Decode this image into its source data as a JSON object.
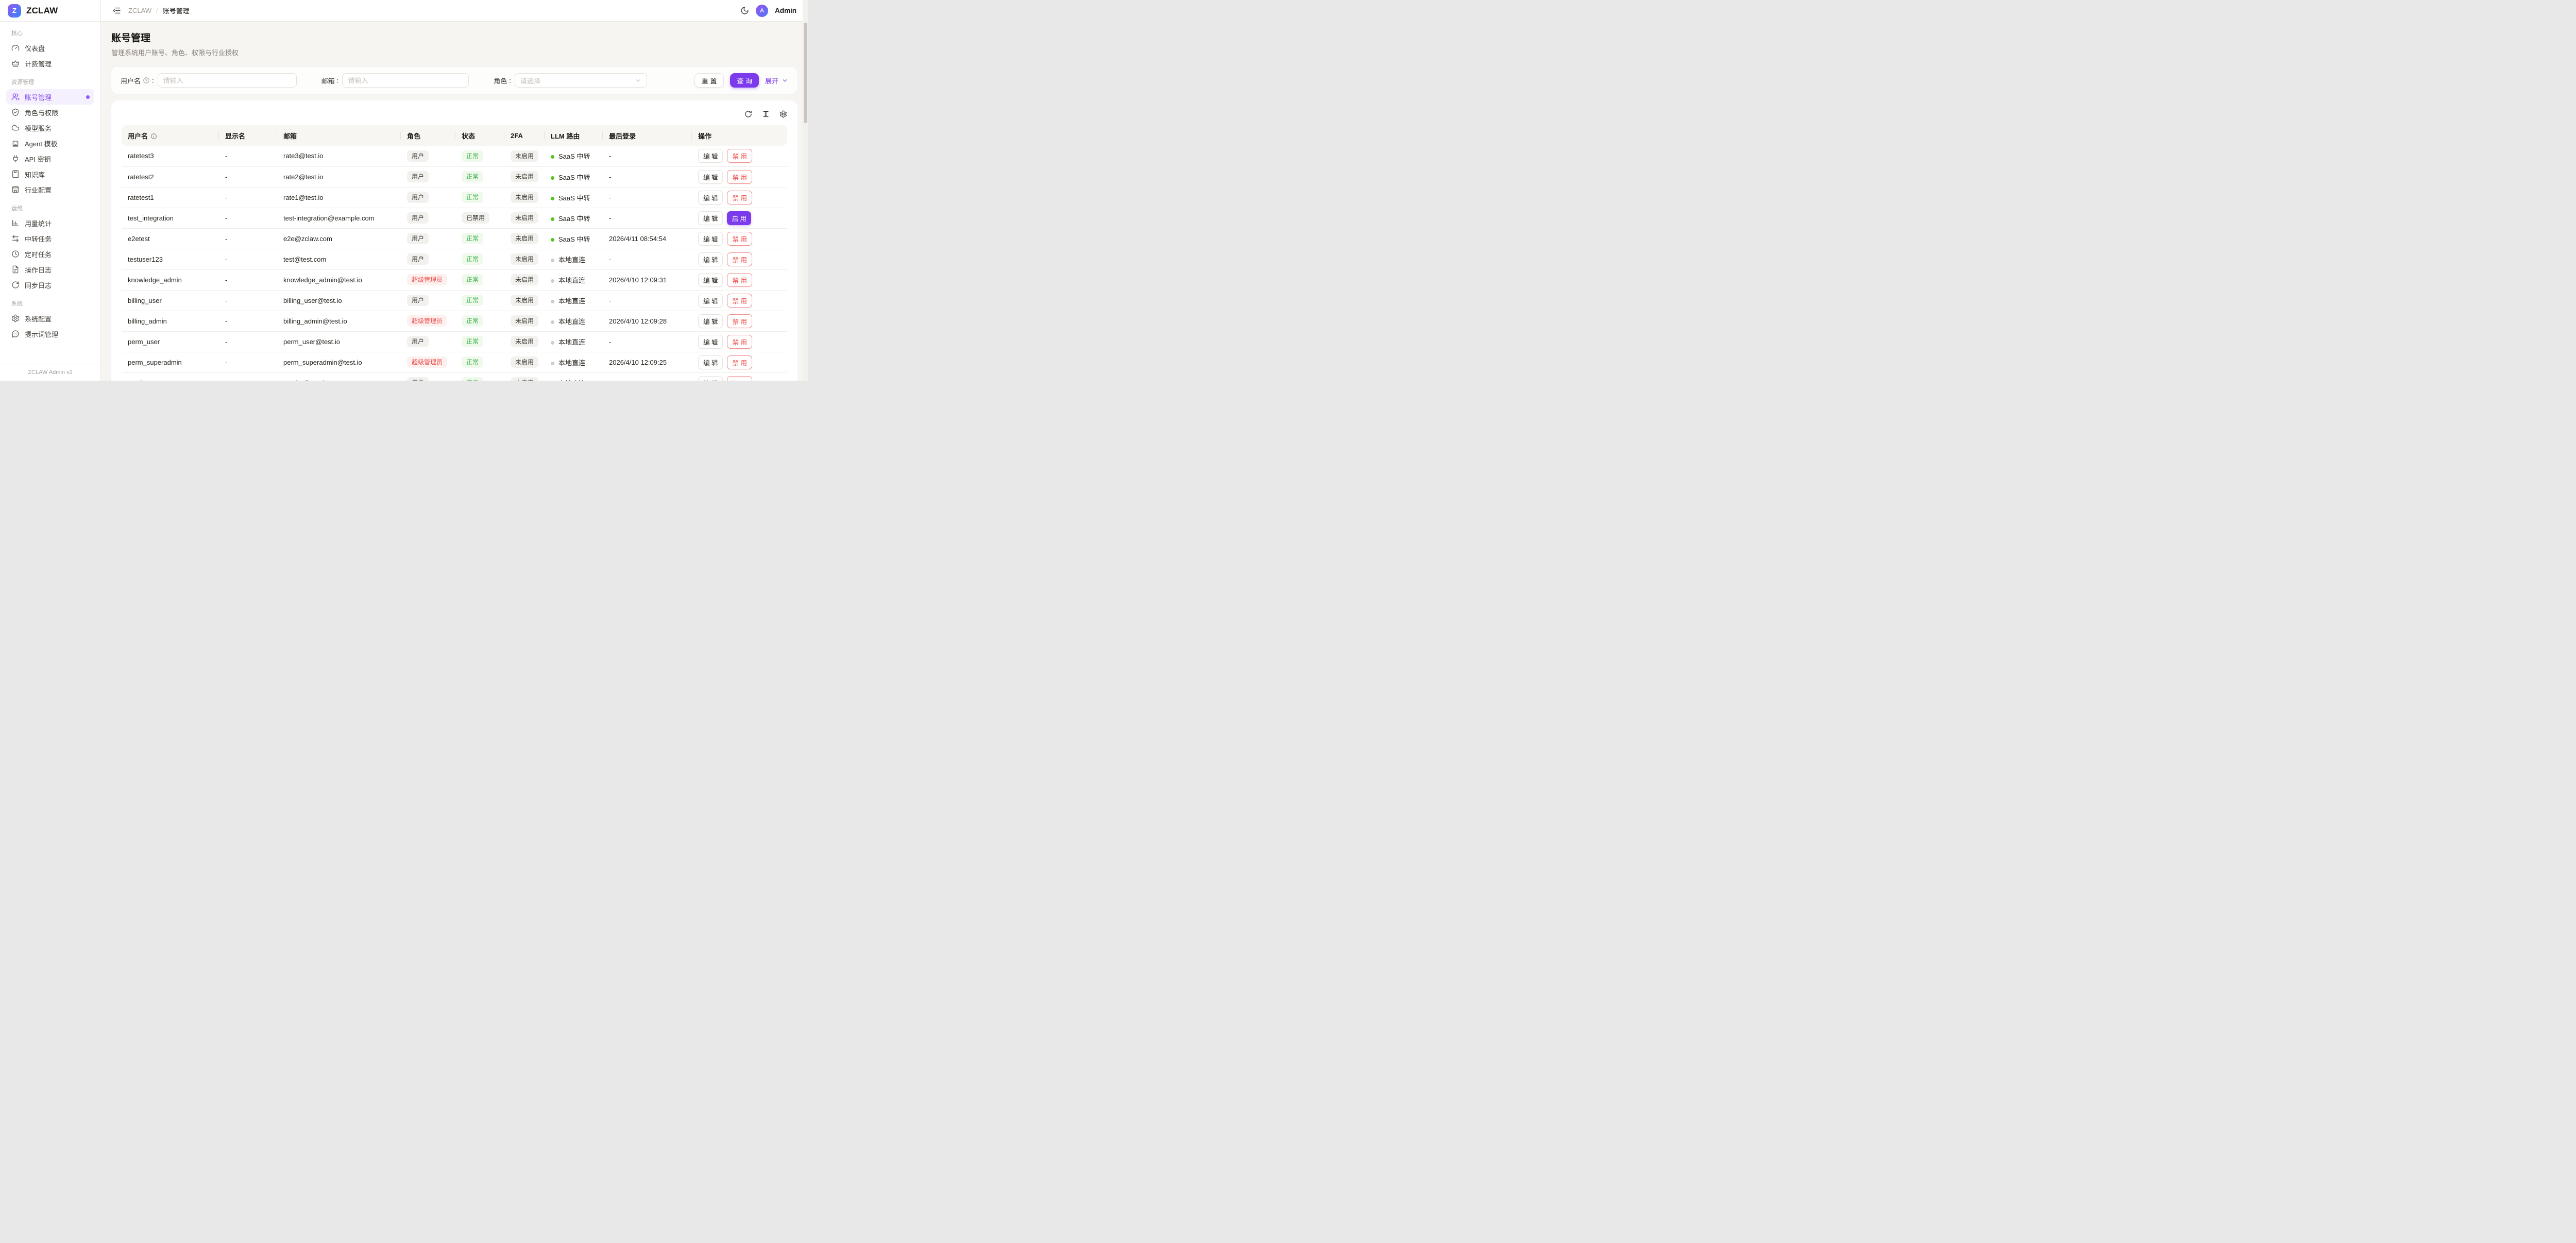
{
  "app": {
    "brand": "ZCLAW",
    "logo_letter": "Z",
    "footer": "ZCLAW Admin v2"
  },
  "header": {
    "breadcrumb_root": "ZCLAW",
    "breadcrumb_sep": "/",
    "breadcrumb_current": "账号管理",
    "user_initial": "A",
    "user_name": "Admin"
  },
  "sidebar": {
    "sections": [
      {
        "label": "核心",
        "items": [
          {
            "icon": "gauge-icon",
            "label": "仪表盘"
          },
          {
            "icon": "crown-icon",
            "label": "计费管理"
          }
        ]
      },
      {
        "label": "资源管理",
        "items": [
          {
            "icon": "users-icon",
            "label": "账号管理",
            "active": true
          },
          {
            "icon": "shield-check-icon",
            "label": "角色与权限"
          },
          {
            "icon": "cloud-icon",
            "label": "模型服务"
          },
          {
            "icon": "bot-icon",
            "label": "Agent 模板"
          },
          {
            "icon": "plug-icon",
            "label": "API 密钥"
          },
          {
            "icon": "book-icon",
            "label": "知识库"
          },
          {
            "icon": "store-icon",
            "label": "行业配置"
          }
        ]
      },
      {
        "label": "运维",
        "items": [
          {
            "icon": "bar-chart-icon",
            "label": "用量统计"
          },
          {
            "icon": "swap-icon",
            "label": "中转任务"
          },
          {
            "icon": "clock-icon",
            "label": "定时任务"
          },
          {
            "icon": "file-icon",
            "label": "操作日志"
          },
          {
            "icon": "sync-icon",
            "label": "同步日志"
          }
        ]
      },
      {
        "label": "系统",
        "items": [
          {
            "icon": "gear-icon",
            "label": "系统配置"
          },
          {
            "icon": "chat-icon",
            "label": "提示词管理"
          }
        ]
      }
    ]
  },
  "page": {
    "title": "账号管理",
    "subtitle": "管理系统用户账号、角色、权限与行业授权"
  },
  "filters": {
    "username_label": "用户名",
    "username_placeholder": "请输入",
    "email_label": "邮箱",
    "email_placeholder": "请输入",
    "role_label": "角色",
    "role_placeholder": "请选择",
    "label_colon": ":",
    "reset_label": "重 置",
    "search_label": "查 询",
    "expand_label": "展开"
  },
  "toolbar": {
    "icons": [
      "refresh-icon",
      "row-height-icon",
      "gear-icon"
    ]
  },
  "table": {
    "columns": [
      {
        "label": "用户名",
        "info": true
      },
      {
        "label": "显示名"
      },
      {
        "label": "邮箱"
      },
      {
        "label": "角色"
      },
      {
        "label": "状态"
      },
      {
        "label": "2FA"
      },
      {
        "label": "LLM 路由"
      },
      {
        "label": "最后登录"
      },
      {
        "label": "操作"
      }
    ],
    "rows": [
      {
        "username": "ratetest3",
        "display": "-",
        "email": "rate3@test.io",
        "role": {
          "label": "用户",
          "type": "user"
        },
        "status": {
          "label": "正常",
          "type": "normal"
        },
        "twofa": "未启用",
        "route": {
          "label": "SaaS 中转",
          "type": "saas"
        },
        "last_login": "-",
        "actions": [
          {
            "label": "编 辑",
            "variant": "default"
          },
          {
            "label": "禁 用",
            "variant": "danger"
          }
        ]
      },
      {
        "username": "ratetest2",
        "display": "-",
        "email": "rate2@test.io",
        "role": {
          "label": "用户",
          "type": "user"
        },
        "status": {
          "label": "正常",
          "type": "normal"
        },
        "twofa": "未启用",
        "route": {
          "label": "SaaS 中转",
          "type": "saas"
        },
        "last_login": "-",
        "actions": [
          {
            "label": "编 辑",
            "variant": "default"
          },
          {
            "label": "禁 用",
            "variant": "danger"
          }
        ]
      },
      {
        "username": "ratetest1",
        "display": "-",
        "email": "rate1@test.io",
        "role": {
          "label": "用户",
          "type": "user"
        },
        "status": {
          "label": "正常",
          "type": "normal"
        },
        "twofa": "未启用",
        "route": {
          "label": "SaaS 中转",
          "type": "saas"
        },
        "last_login": "-",
        "actions": [
          {
            "label": "编 辑",
            "variant": "default"
          },
          {
            "label": "禁 用",
            "variant": "danger"
          }
        ]
      },
      {
        "username": "test_integration",
        "display": "-",
        "email": "test-integration@example.com",
        "role": {
          "label": "用户",
          "type": "user"
        },
        "status": {
          "label": "已禁用",
          "type": "disabled"
        },
        "twofa": "未启用",
        "route": {
          "label": "SaaS 中转",
          "type": "saas"
        },
        "last_login": "-",
        "actions": [
          {
            "label": "编 辑",
            "variant": "default"
          },
          {
            "label": "启 用",
            "variant": "primary"
          }
        ]
      },
      {
        "username": "e2etest",
        "display": "-",
        "email": "e2e@zclaw.com",
        "role": {
          "label": "用户",
          "type": "user"
        },
        "status": {
          "label": "正常",
          "type": "normal"
        },
        "twofa": "未启用",
        "route": {
          "label": "SaaS 中转",
          "type": "saas"
        },
        "last_login": "2026/4/11 08:54:54",
        "actions": [
          {
            "label": "编 辑",
            "variant": "default"
          },
          {
            "label": "禁 用",
            "variant": "danger"
          }
        ]
      },
      {
        "username": "testuser123",
        "display": "-",
        "email": "test@test.com",
        "role": {
          "label": "用户",
          "type": "user"
        },
        "status": {
          "label": "正常",
          "type": "normal"
        },
        "twofa": "未启用",
        "route": {
          "label": "本地直连",
          "type": "local"
        },
        "last_login": "-",
        "actions": [
          {
            "label": "编 辑",
            "variant": "default"
          },
          {
            "label": "禁 用",
            "variant": "danger"
          }
        ]
      },
      {
        "username": "knowledge_admin",
        "display": "-",
        "email": "knowledge_admin@test.io",
        "role": {
          "label": "超级管理员",
          "type": "superadmin"
        },
        "status": {
          "label": "正常",
          "type": "normal"
        },
        "twofa": "未启用",
        "route": {
          "label": "本地直连",
          "type": "local"
        },
        "last_login": "2026/4/10 12:09:31",
        "actions": [
          {
            "label": "编 辑",
            "variant": "default"
          },
          {
            "label": "禁 用",
            "variant": "danger"
          }
        ]
      },
      {
        "username": "billing_user",
        "display": "-",
        "email": "billing_user@test.io",
        "role": {
          "label": "用户",
          "type": "user"
        },
        "status": {
          "label": "正常",
          "type": "normal"
        },
        "twofa": "未启用",
        "route": {
          "label": "本地直连",
          "type": "local"
        },
        "last_login": "-",
        "actions": [
          {
            "label": "编 辑",
            "variant": "default"
          },
          {
            "label": "禁 用",
            "variant": "danger"
          }
        ]
      },
      {
        "username": "billing_admin",
        "display": "-",
        "email": "billing_admin@test.io",
        "role": {
          "label": "超级管理员",
          "type": "superadmin"
        },
        "status": {
          "label": "正常",
          "type": "normal"
        },
        "twofa": "未启用",
        "route": {
          "label": "本地直连",
          "type": "local"
        },
        "last_login": "2026/4/10 12:09:28",
        "actions": [
          {
            "label": "编 辑",
            "variant": "default"
          },
          {
            "label": "禁 用",
            "variant": "danger"
          }
        ]
      },
      {
        "username": "perm_user",
        "display": "-",
        "email": "perm_user@test.io",
        "role": {
          "label": "用户",
          "type": "user"
        },
        "status": {
          "label": "正常",
          "type": "normal"
        },
        "twofa": "未启用",
        "route": {
          "label": "本地直连",
          "type": "local"
        },
        "last_login": "-",
        "actions": [
          {
            "label": "编 辑",
            "variant": "default"
          },
          {
            "label": "禁 用",
            "variant": "danger"
          }
        ]
      },
      {
        "username": "perm_superadmin",
        "display": "-",
        "email": "perm_superadmin@test.io",
        "role": {
          "label": "超级管理员",
          "type": "superadmin"
        },
        "status": {
          "label": "正常",
          "type": "normal"
        },
        "twofa": "未启用",
        "route": {
          "label": "本地直连",
          "type": "local"
        },
        "last_login": "2026/4/10 12:09:25",
        "actions": [
          {
            "label": "编 辑",
            "variant": "default"
          },
          {
            "label": "禁 用",
            "variant": "danger"
          }
        ]
      },
      {
        "username": "smoke_user",
        "display": "-",
        "email": "smoke@test.io",
        "role": {
          "label": "用户",
          "type": "user"
        },
        "status": {
          "label": "正常",
          "type": "normal"
        },
        "twofa": "未启用",
        "route": {
          "label": "本地直连",
          "type": "local"
        },
        "last_login": "-",
        "actions": [
          {
            "label": "编 辑",
            "variant": "default"
          },
          {
            "label": "禁 用",
            "variant": "danger"
          }
        ]
      }
    ]
  },
  "colors": {
    "primary": "#7c3aed",
    "danger": "#ee4f4c",
    "success": "#3eb34a",
    "saas_dot": "#52c41a",
    "local_dot": "#cfccc7",
    "logo_gradient_from": "#8b5cf6",
    "logo_gradient_to": "#3b82f6"
  }
}
